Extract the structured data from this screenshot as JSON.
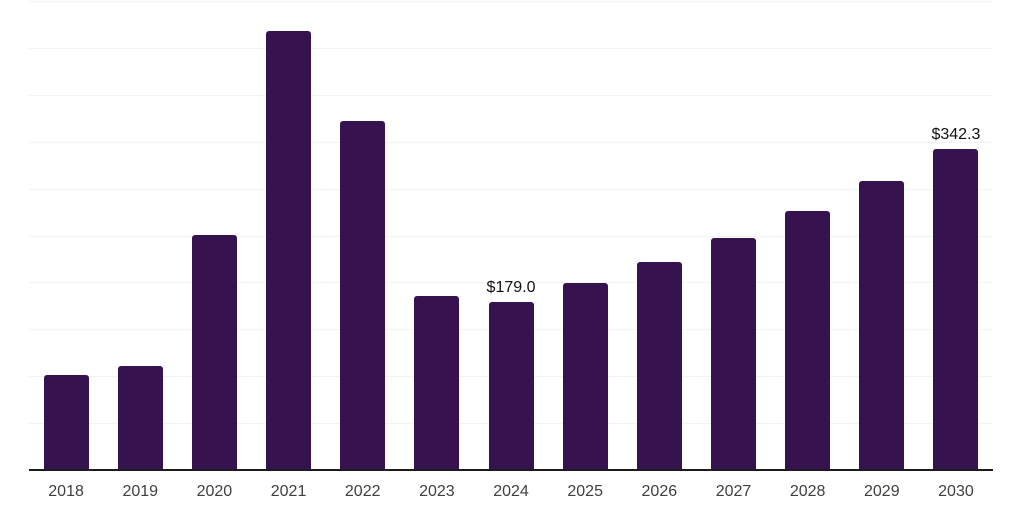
{
  "chart_data": {
    "type": "bar",
    "title": "",
    "xlabel": "",
    "ylabel": "",
    "categories": [
      "2018",
      "2019",
      "2020",
      "2021",
      "2022",
      "2023",
      "2024",
      "2025",
      "2026",
      "2027",
      "2028",
      "2029",
      "2030"
    ],
    "values": [
      101.6,
      111.2,
      250.9,
      468.4,
      372.1,
      185.8,
      179.0,
      199.7,
      222.1,
      247.6,
      276.1,
      308.4,
      342.3
    ],
    "data_labels": [
      {
        "category": "2024",
        "text": "$179.0"
      },
      {
        "category": "2030",
        "text": "$342.3"
      }
    ],
    "ylim": [
      0,
      500
    ],
    "gridline_step": 50,
    "grid": "horizontal",
    "legend": "none",
    "y_axis_tick_labels_visible": false,
    "colors": {
      "bar": "#36124E",
      "gridline": "#f3f3f3",
      "axis_line": "#1c1c1c",
      "tick_label": "#3f3f3f",
      "data_label": "#111111",
      "background": "#ffffff"
    }
  }
}
